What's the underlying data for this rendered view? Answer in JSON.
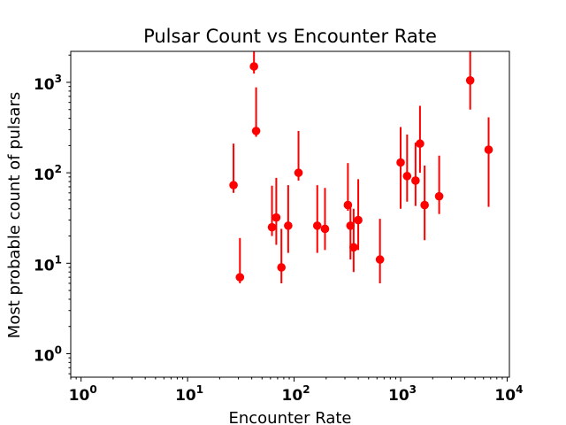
{
  "chart_data": {
    "type": "scatter",
    "title": "Pulsar Count vs Encounter Rate",
    "xlabel": "Encounter Rate",
    "ylabel": "Most probable count of pulsars",
    "xscale": "log",
    "yscale": "log",
    "xlim": [
      0.8,
      10500
    ],
    "ylim": [
      0.55,
      2200
    ],
    "xticks": [
      {
        "value": 1,
        "base": "10",
        "exp": "0"
      },
      {
        "value": 10,
        "base": "10",
        "exp": "1"
      },
      {
        "value": 100,
        "base": "10",
        "exp": "2"
      },
      {
        "value": 1000,
        "base": "10",
        "exp": "3"
      },
      {
        "value": 10000,
        "base": "10",
        "exp": "4"
      }
    ],
    "yticks": [
      {
        "value": 1,
        "base": "10",
        "exp": "0"
      },
      {
        "value": 10,
        "base": "10",
        "exp": "1"
      },
      {
        "value": 100,
        "base": "10",
        "exp": "2"
      },
      {
        "value": 1000,
        "base": "10",
        "exp": "3"
      }
    ],
    "grid": false,
    "marker_color": "#ff0000",
    "points": [
      {
        "x": 27,
        "y": 73,
        "ylow": 60,
        "yhigh": 210
      },
      {
        "x": 31,
        "y": 7,
        "ylow": 6,
        "yhigh": 19
      },
      {
        "x": 42,
        "y": 1500,
        "ylow": 1250,
        "yhigh": 2300
      },
      {
        "x": 44,
        "y": 290,
        "ylow": 250,
        "yhigh": 880
      },
      {
        "x": 62,
        "y": 25,
        "ylow": 20,
        "yhigh": 72
      },
      {
        "x": 68,
        "y": 32,
        "ylow": 16,
        "yhigh": 88
      },
      {
        "x": 76,
        "y": 9,
        "ylow": 6,
        "yhigh": 24
      },
      {
        "x": 88,
        "y": 26,
        "ylow": 13,
        "yhigh": 73
      },
      {
        "x": 110,
        "y": 100,
        "ylow": 82,
        "yhigh": 290
      },
      {
        "x": 165,
        "y": 26,
        "ylow": 13,
        "yhigh": 73
      },
      {
        "x": 195,
        "y": 24,
        "ylow": 14,
        "yhigh": 68
      },
      {
        "x": 320,
        "y": 44,
        "ylow": 38,
        "yhigh": 128
      },
      {
        "x": 338,
        "y": 26,
        "ylow": 11,
        "yhigh": 42
      },
      {
        "x": 362,
        "y": 15,
        "ylow": 8,
        "yhigh": 40
      },
      {
        "x": 400,
        "y": 30,
        "ylow": 14,
        "yhigh": 85
      },
      {
        "x": 640,
        "y": 11,
        "ylow": 6,
        "yhigh": 31
      },
      {
        "x": 1000,
        "y": 130,
        "ylow": 40,
        "yhigh": 320
      },
      {
        "x": 1150,
        "y": 92,
        "ylow": 48,
        "yhigh": 265
      },
      {
        "x": 1380,
        "y": 82,
        "ylow": 43,
        "yhigh": 215
      },
      {
        "x": 1520,
        "y": 210,
        "ylow": 100,
        "yhigh": 550
      },
      {
        "x": 1680,
        "y": 44,
        "ylow": 18,
        "yhigh": 120
      },
      {
        "x": 2300,
        "y": 55,
        "ylow": 35,
        "yhigh": 155
      },
      {
        "x": 4500,
        "y": 1050,
        "ylow": 500,
        "yhigh": 2300
      },
      {
        "x": 6700,
        "y": 180,
        "ylow": 42,
        "yhigh": 410
      }
    ]
  }
}
